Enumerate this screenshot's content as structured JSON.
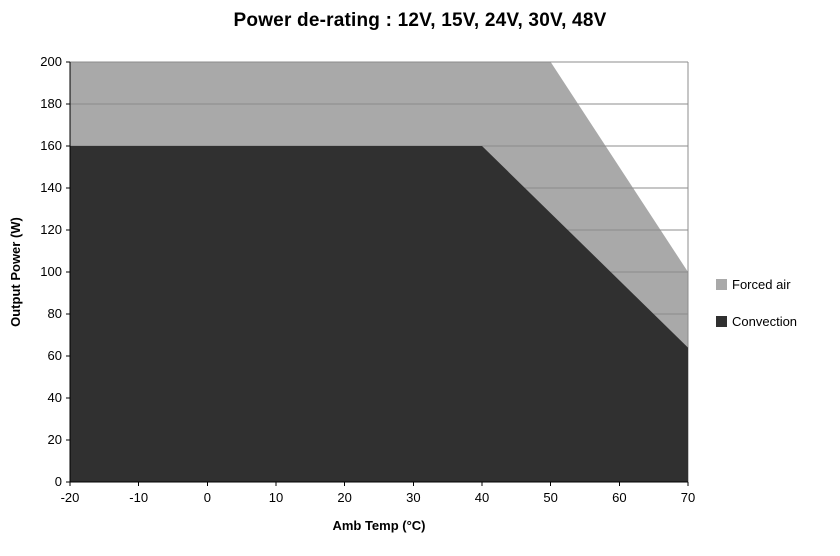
{
  "chart_data": {
    "type": "area",
    "title": "Power de-rating : 12V, 15V, 24V, 30V, 48V",
    "xlabel": "Amb Temp (°C)",
    "ylabel": "Output Power (W)",
    "xlim": [
      -20,
      70
    ],
    "ylim": [
      0,
      200
    ],
    "x_ticks": [
      -20,
      -10,
      0,
      10,
      20,
      30,
      40,
      50,
      60,
      70
    ],
    "y_ticks": [
      0,
      20,
      40,
      60,
      80,
      100,
      120,
      140,
      160,
      180,
      200
    ],
    "grid": "horizontal",
    "legend_position": "right",
    "series": [
      {
        "name": "Forced air",
        "color": "#a9a9a9",
        "points": [
          [
            -20,
            200
          ],
          [
            50,
            200
          ],
          [
            70,
            100
          ]
        ]
      },
      {
        "name": "Convection",
        "color": "#303030",
        "points": [
          [
            -20,
            160
          ],
          [
            40,
            160
          ],
          [
            70,
            64
          ]
        ]
      }
    ]
  },
  "colors": {
    "gridline": "#8c8c8c",
    "axis": "#000000",
    "background": "#ffffff",
    "text": "#000000"
  }
}
